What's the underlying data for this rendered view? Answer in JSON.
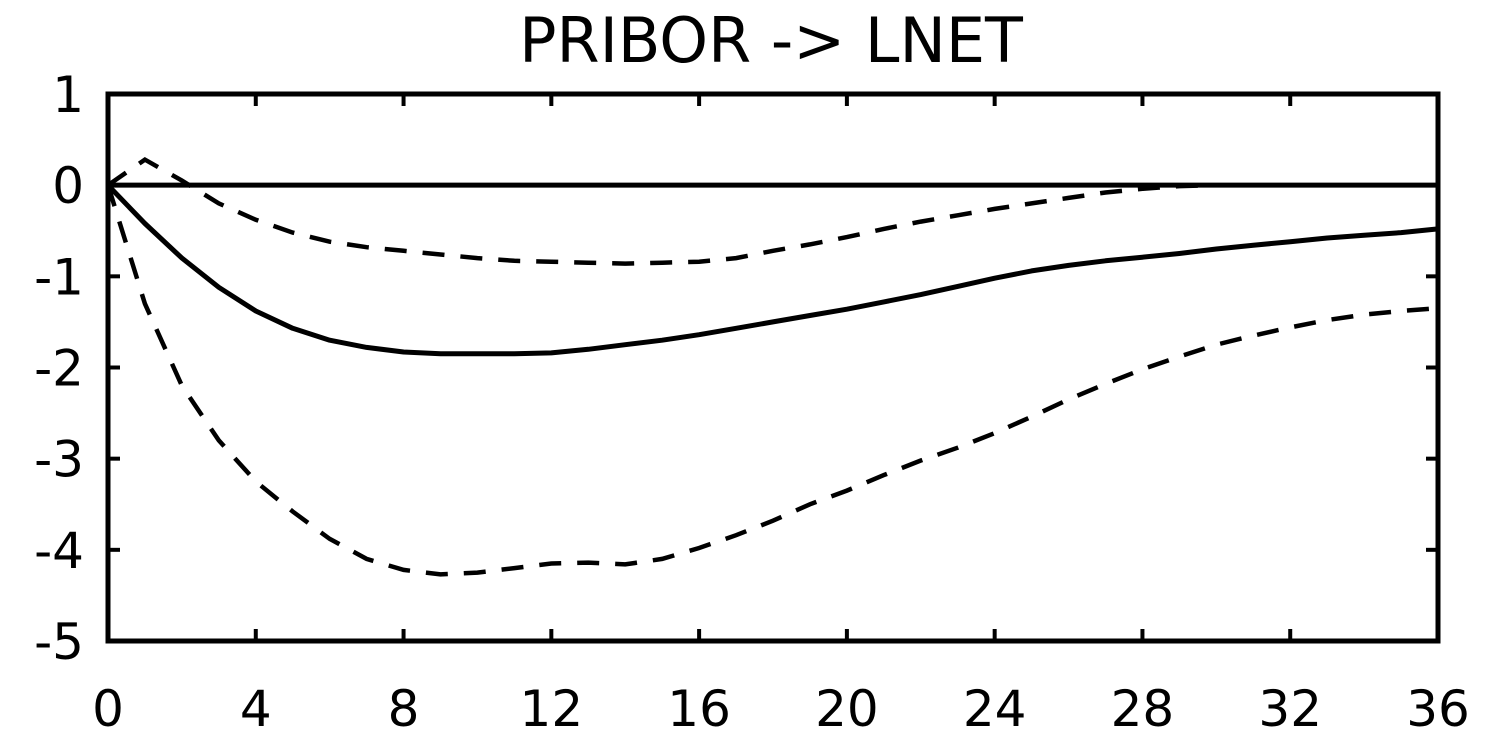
{
  "chart_data": {
    "type": "line",
    "title": "PRIBOR -> LNET",
    "xlabel": "",
    "ylabel": "",
    "xlim": [
      0,
      36
    ],
    "ylim": [
      -5,
      1
    ],
    "xticks": [
      0,
      4,
      8,
      12,
      16,
      20,
      24,
      28,
      32,
      36
    ],
    "yticks": [
      1,
      0,
      -1,
      -2,
      -3,
      -4,
      -5
    ],
    "xtick_labels": [
      "0",
      "4",
      "8",
      "12",
      "16",
      "20",
      "24",
      "28",
      "32",
      "36"
    ],
    "ytick_labels": [
      "1",
      "0",
      "-1",
      "-2",
      "-3",
      "-4",
      "-5"
    ],
    "zero_line": 0,
    "grid": false,
    "series": [
      {
        "style": "solid",
        "x": [
          0,
          1,
          2,
          3,
          4,
          5,
          6,
          7,
          8,
          9,
          10,
          11,
          12,
          13,
          14,
          15,
          16,
          17,
          18,
          19,
          20,
          21,
          22,
          23,
          24,
          25,
          26,
          27,
          28,
          29,
          30,
          31,
          32,
          33,
          34,
          35,
          36
        ],
        "values": [
          0,
          -0.42,
          -0.8,
          -1.12,
          -1.38,
          -1.57,
          -1.7,
          -1.78,
          -1.83,
          -1.85,
          -1.85,
          -1.85,
          -1.84,
          -1.8,
          -1.75,
          -1.7,
          -1.64,
          -1.57,
          -1.5,
          -1.43,
          -1.36,
          -1.28,
          -1.2,
          -1.11,
          -1.02,
          -0.94,
          -0.88,
          -0.83,
          -0.79,
          -0.75,
          -0.7,
          -0.66,
          -0.62,
          -0.58,
          -0.55,
          -0.52,
          -0.48
        ]
      },
      {
        "style": "dashed",
        "x": [
          0,
          1,
          2,
          3,
          4,
          5,
          6,
          7,
          8,
          9,
          10,
          11,
          12,
          13,
          14,
          15,
          16,
          17,
          18,
          19,
          20,
          21,
          22,
          23,
          24,
          25,
          26,
          27,
          28,
          29,
          30
        ],
        "values": [
          0,
          0.28,
          0.05,
          -0.2,
          -0.38,
          -0.52,
          -0.62,
          -0.68,
          -0.72,
          -0.76,
          -0.8,
          -0.83,
          -0.84,
          -0.85,
          -0.86,
          -0.85,
          -0.84,
          -0.8,
          -0.72,
          -0.65,
          -0.57,
          -0.48,
          -0.4,
          -0.33,
          -0.26,
          -0.2,
          -0.14,
          -0.08,
          -0.04,
          -0.01,
          0
        ]
      },
      {
        "style": "dashed",
        "x": [
          0,
          1,
          2,
          3,
          4,
          5,
          6,
          7,
          8,
          9,
          10,
          11,
          12,
          13,
          14,
          15,
          16,
          17,
          18,
          19,
          20,
          21,
          22,
          23,
          24,
          25,
          26,
          27,
          28,
          29,
          30,
          31,
          32,
          33,
          34,
          35,
          36
        ],
        "values": [
          0,
          -1.3,
          -2.2,
          -2.8,
          -3.25,
          -3.58,
          -3.88,
          -4.1,
          -4.22,
          -4.27,
          -4.25,
          -4.2,
          -4.15,
          -4.14,
          -4.16,
          -4.1,
          -3.98,
          -3.84,
          -3.68,
          -3.5,
          -3.35,
          -3.18,
          -3.02,
          -2.88,
          -2.72,
          -2.54,
          -2.35,
          -2.18,
          -2.02,
          -1.88,
          -1.75,
          -1.65,
          -1.56,
          -1.48,
          -1.42,
          -1.38,
          -1.35
        ]
      }
    ]
  }
}
